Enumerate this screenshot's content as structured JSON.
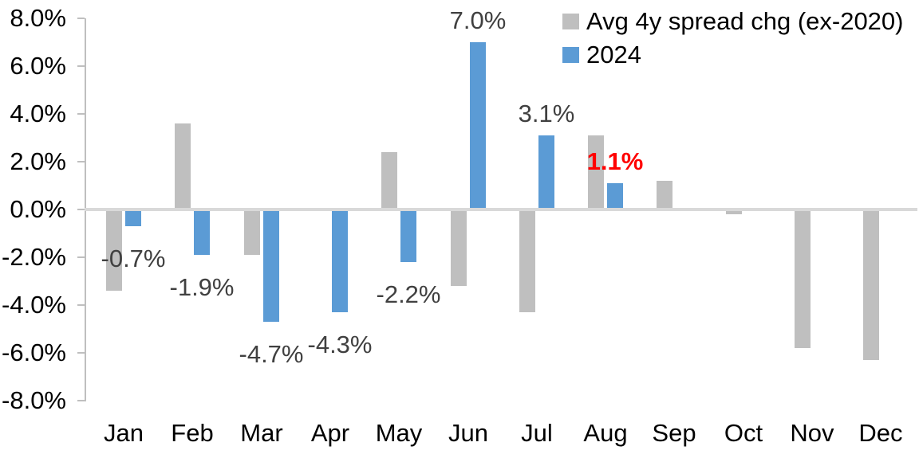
{
  "chart_data": {
    "type": "bar",
    "title": "",
    "xlabel": "",
    "ylabel": "",
    "categories": [
      "Jan",
      "Feb",
      "Mar",
      "Apr",
      "May",
      "Jun",
      "Jul",
      "Aug",
      "Sep",
      "Oct",
      "Nov",
      "Dec"
    ],
    "series": [
      {
        "name": "Avg 4y spread chg (ex-2020)",
        "color": "#BFBFBF",
        "values": [
          -3.4,
          3.6,
          -1.9,
          0.0,
          2.4,
          -3.2,
          -4.3,
          3.1,
          1.2,
          -0.2,
          -5.8,
          -6.3
        ]
      },
      {
        "name": "2024",
        "color": "#5B9BD5",
        "values": [
          -0.7,
          -1.9,
          -4.7,
          -4.3,
          -2.2,
          7.0,
          3.1,
          1.1,
          null,
          null,
          null,
          null
        ],
        "data_labels": [
          {
            "text": "-0.7%",
            "color": "#404040",
            "bold": false
          },
          {
            "text": "-1.9%",
            "color": "#404040",
            "bold": false
          },
          {
            "text": "-4.7%",
            "color": "#404040",
            "bold": false
          },
          {
            "text": "-4.3%",
            "color": "#404040",
            "bold": false
          },
          {
            "text": "-2.2%",
            "color": "#404040",
            "bold": false
          },
          {
            "text": "7.0%",
            "color": "#404040",
            "bold": false
          },
          {
            "text": "3.1%",
            "color": "#404040",
            "bold": false
          },
          {
            "text": "1.1%",
            "color": "#FF0000",
            "bold": true
          },
          null,
          null,
          null,
          null
        ]
      }
    ],
    "ylim": [
      -8,
      8
    ],
    "ytick_step": 2,
    "ytick_labels": [
      "8.0%",
      "6.0%",
      "4.0%",
      "2.0%",
      "0.0%",
      "-2.0%",
      "-4.0%",
      "-6.0%",
      "-8.0%"
    ],
    "grid": false,
    "legend_position": "top-right",
    "axis_color": "#BFBFBF",
    "zero_line_color": "#D9D9D9"
  },
  "legend": {
    "items": [
      {
        "label": "Avg 4y spread chg (ex-2020)",
        "color": "#BFBFBF"
      },
      {
        "label": "2024",
        "color": "#5B9BD5"
      }
    ]
  }
}
